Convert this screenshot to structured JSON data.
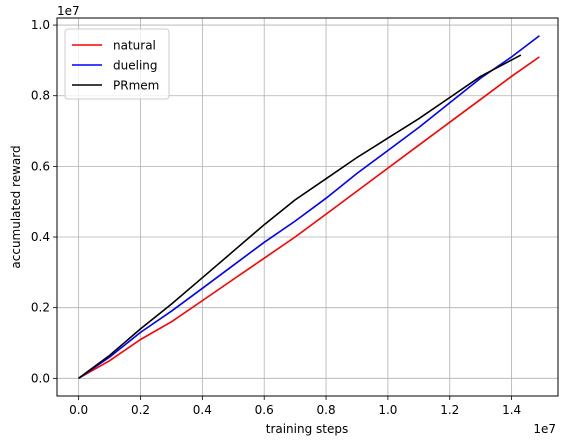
{
  "chart_data": {
    "type": "line",
    "title": "",
    "xlabel": "training steps",
    "ylabel": "accumulated reward",
    "x_scale_label": "1e7",
    "y_scale_label": "1e7",
    "xlim": [
      -0.07,
      1.55
    ],
    "ylim": [
      -0.05,
      1.02
    ],
    "xticks": [
      0.0,
      0.2,
      0.4,
      0.6,
      0.8,
      1.0,
      1.2,
      1.4
    ],
    "yticks": [
      0.0,
      0.2,
      0.4,
      0.6,
      0.8,
      1.0
    ],
    "xtick_labels": [
      "0.0",
      "0.2",
      "0.4",
      "0.6",
      "0.8",
      "1.0",
      "1.2",
      "1.4"
    ],
    "ytick_labels": [
      "0.0",
      "0.2",
      "0.4",
      "0.6",
      "0.8",
      "1.0"
    ],
    "grid": true,
    "legend_position": "top-left",
    "series": [
      {
        "name": "natural",
        "color": "#ff0000",
        "x": [
          0.0,
          0.1,
          0.2,
          0.3,
          0.4,
          0.5,
          0.6,
          0.7,
          0.8,
          0.9,
          1.0,
          1.1,
          1.2,
          1.3,
          1.4,
          1.49
        ],
        "y": [
          0.0,
          0.05,
          0.11,
          0.16,
          0.22,
          0.28,
          0.34,
          0.4,
          0.465,
          0.53,
          0.595,
          0.66,
          0.725,
          0.79,
          0.855,
          0.91
        ]
      },
      {
        "name": "dueling",
        "color": "#0000ff",
        "x": [
          0.0,
          0.1,
          0.2,
          0.3,
          0.4,
          0.5,
          0.6,
          0.7,
          0.8,
          0.9,
          1.0,
          1.1,
          1.2,
          1.3,
          1.4,
          1.49
        ],
        "y": [
          0.0,
          0.06,
          0.13,
          0.19,
          0.255,
          0.32,
          0.385,
          0.445,
          0.51,
          0.58,
          0.645,
          0.71,
          0.78,
          0.85,
          0.91,
          0.97
        ]
      },
      {
        "name": "PRmem",
        "color": "#000000",
        "x": [
          0.0,
          0.1,
          0.2,
          0.3,
          0.4,
          0.5,
          0.6,
          0.7,
          0.8,
          0.9,
          1.0,
          1.1,
          1.2,
          1.3,
          1.43
        ],
        "y": [
          0.0,
          0.065,
          0.14,
          0.21,
          0.285,
          0.36,
          0.435,
          0.505,
          0.565,
          0.625,
          0.68,
          0.735,
          0.795,
          0.855,
          0.915
        ]
      }
    ]
  }
}
